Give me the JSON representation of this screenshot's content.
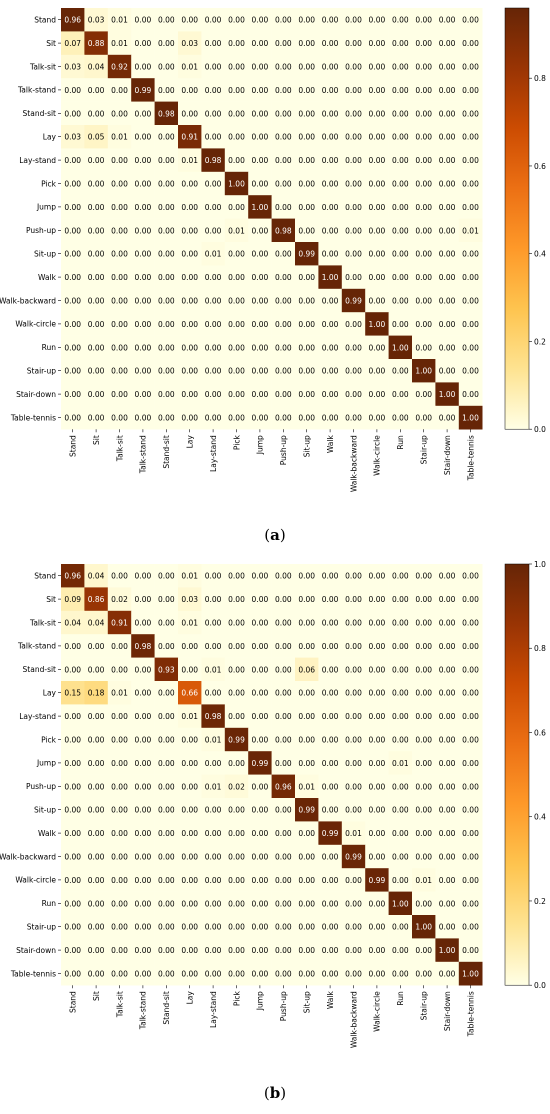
{
  "chart_data": [
    {
      "type": "heatmap",
      "panel_label": "a",
      "rows": [
        "Stand",
        "Sit",
        "Talk-sit",
        "Talk-stand",
        "Stand-sit",
        "Lay",
        "Lay-stand",
        "Pick",
        "Jump",
        "Push-up",
        "Sit-up",
        "Walk",
        "Walk-backward",
        "Walk-circle",
        "Run",
        "Stair-up",
        "Stair-down",
        "Table-tennis"
      ],
      "cols": [
        "Stand",
        "Sit",
        "Talk-sit",
        "Talk-stand",
        "Stand-sit",
        "Lay",
        "Lay-stand",
        "Pick",
        "Jump",
        "Push-up",
        "Sit-up",
        "Walk",
        "Walk-backward",
        "Walk-circle",
        "Run",
        "Stair-up",
        "Stair-down",
        "Table-tennis"
      ],
      "values": [
        [
          0.96,
          0.03,
          0.01,
          0.0,
          0.0,
          0.0,
          0.0,
          0.0,
          0.0,
          0.0,
          0.0,
          0.0,
          0.0,
          0.0,
          0.0,
          0.0,
          0.0,
          0.0
        ],
        [
          0.07,
          0.88,
          0.01,
          0.0,
          0.0,
          0.03,
          0.0,
          0.0,
          0.0,
          0.0,
          0.0,
          0.0,
          0.0,
          0.0,
          0.0,
          0.0,
          0.0,
          0.0
        ],
        [
          0.03,
          0.04,
          0.92,
          0.0,
          0.0,
          0.01,
          0.0,
          0.0,
          0.0,
          0.0,
          0.0,
          0.0,
          0.0,
          0.0,
          0.0,
          0.0,
          0.0,
          0.0
        ],
        [
          0.0,
          0.0,
          0.0,
          0.99,
          0.0,
          0.0,
          0.0,
          0.0,
          0.0,
          0.0,
          0.0,
          0.0,
          0.0,
          0.0,
          0.0,
          0.0,
          0.0,
          0.0
        ],
        [
          0.0,
          0.0,
          0.0,
          0.0,
          0.98,
          0.0,
          0.0,
          0.0,
          0.0,
          0.0,
          0.0,
          0.0,
          0.0,
          0.0,
          0.0,
          0.0,
          0.0,
          0.0
        ],
        [
          0.03,
          0.05,
          0.01,
          0.0,
          0.0,
          0.91,
          0.0,
          0.0,
          0.0,
          0.0,
          0.0,
          0.0,
          0.0,
          0.0,
          0.0,
          0.0,
          0.0,
          0.0
        ],
        [
          0.0,
          0.0,
          0.0,
          0.0,
          0.0,
          0.01,
          0.98,
          0.0,
          0.0,
          0.0,
          0.0,
          0.0,
          0.0,
          0.0,
          0.0,
          0.0,
          0.0,
          0.0
        ],
        [
          0.0,
          0.0,
          0.0,
          0.0,
          0.0,
          0.0,
          0.0,
          1.0,
          0.0,
          0.0,
          0.0,
          0.0,
          0.0,
          0.0,
          0.0,
          0.0,
          0.0,
          0.0
        ],
        [
          0.0,
          0.0,
          0.0,
          0.0,
          0.0,
          0.0,
          0.0,
          0.0,
          1.0,
          0.0,
          0.0,
          0.0,
          0.0,
          0.0,
          0.0,
          0.0,
          0.0,
          0.0
        ],
        [
          0.0,
          0.0,
          0.0,
          0.0,
          0.0,
          0.0,
          0.0,
          0.01,
          0.0,
          0.98,
          0.0,
          0.0,
          0.0,
          0.0,
          0.0,
          0.0,
          0.0,
          0.01
        ],
        [
          0.0,
          0.0,
          0.0,
          0.0,
          0.0,
          0.0,
          0.01,
          0.0,
          0.0,
          0.0,
          0.99,
          0.0,
          0.0,
          0.0,
          0.0,
          0.0,
          0.0,
          0.0
        ],
        [
          0.0,
          0.0,
          0.0,
          0.0,
          0.0,
          0.0,
          0.0,
          0.0,
          0.0,
          0.0,
          0.0,
          1.0,
          0.0,
          0.0,
          0.0,
          0.0,
          0.0,
          0.0
        ],
        [
          0.0,
          0.0,
          0.0,
          0.0,
          0.0,
          0.0,
          0.0,
          0.0,
          0.0,
          0.0,
          0.0,
          0.0,
          0.99,
          0.0,
          0.0,
          0.0,
          0.0,
          0.0
        ],
        [
          0.0,
          0.0,
          0.0,
          0.0,
          0.0,
          0.0,
          0.0,
          0.0,
          0.0,
          0.0,
          0.0,
          0.0,
          0.0,
          1.0,
          0.0,
          0.0,
          0.0,
          0.0
        ],
        [
          0.0,
          0.0,
          0.0,
          0.0,
          0.0,
          0.0,
          0.0,
          0.0,
          0.0,
          0.0,
          0.0,
          0.0,
          0.0,
          0.0,
          1.0,
          0.0,
          0.0,
          0.0
        ],
        [
          0.0,
          0.0,
          0.0,
          0.0,
          0.0,
          0.0,
          0.0,
          0.0,
          0.0,
          0.0,
          0.0,
          0.0,
          0.0,
          0.0,
          0.0,
          1.0,
          0.0,
          0.0
        ],
        [
          0.0,
          0.0,
          0.0,
          0.0,
          0.0,
          0.0,
          0.0,
          0.0,
          0.0,
          0.0,
          0.0,
          0.0,
          0.0,
          0.0,
          0.0,
          0.0,
          1.0,
          0.0
        ],
        [
          0.0,
          0.0,
          0.0,
          0.0,
          0.0,
          0.0,
          0.0,
          0.0,
          0.0,
          0.0,
          0.0,
          0.0,
          0.0,
          0.0,
          0.0,
          0.0,
          0.0,
          1.0
        ]
      ],
      "colorbar": {
        "range": [
          0,
          0.96
        ],
        "ticks": [
          0.0,
          0.2,
          0.4,
          0.6,
          0.8
        ],
        "tick_labels": [
          "0.0",
          "0.2",
          "0.4",
          "0.6",
          "0.8"
        ]
      },
      "colormap": [
        "#ffffe5",
        "#fee391",
        "#fec44f",
        "#fe9929",
        "#ec7014",
        "#cc4c02",
        "#993404",
        "#662506"
      ]
    },
    {
      "type": "heatmap",
      "panel_label": "b",
      "rows": [
        "Stand",
        "Sit",
        "Talk-sit",
        "Talk-stand",
        "Stand-sit",
        "Lay",
        "Lay-stand",
        "Pick",
        "Jump",
        "Push-up",
        "Sit-up",
        "Walk",
        "Walk-backward",
        "Walk-circle",
        "Run",
        "Stair-up",
        "Stair-down",
        "Table-tennis"
      ],
      "cols": [
        "Stand",
        "Sit",
        "Talk-sit",
        "Talk-stand",
        "Stand-sit",
        "Lay",
        "Lay-stand",
        "Pick",
        "Jump",
        "Push-up",
        "Sit-up",
        "Walk",
        "Walk-backward",
        "Walk-circle",
        "Run",
        "Stair-up",
        "Stair-down",
        "Table-tennis"
      ],
      "values": [
        [
          0.96,
          0.04,
          0.0,
          0.0,
          0.0,
          0.01,
          0.0,
          0.0,
          0.0,
          0.0,
          0.0,
          0.0,
          0.0,
          0.0,
          0.0,
          0.0,
          0.0,
          0.0
        ],
        [
          0.09,
          0.86,
          0.02,
          0.0,
          0.0,
          0.03,
          0.0,
          0.0,
          0.0,
          0.0,
          0.0,
          0.0,
          0.0,
          0.0,
          0.0,
          0.0,
          0.0,
          0.0
        ],
        [
          0.04,
          0.04,
          0.91,
          0.0,
          0.0,
          0.01,
          0.0,
          0.0,
          0.0,
          0.0,
          0.0,
          0.0,
          0.0,
          0.0,
          0.0,
          0.0,
          0.0,
          0.0
        ],
        [
          0.0,
          0.0,
          0.0,
          0.98,
          0.0,
          0.0,
          0.0,
          0.0,
          0.0,
          0.0,
          0.0,
          0.0,
          0.0,
          0.0,
          0.0,
          0.0,
          0.0,
          0.0
        ],
        [
          0.0,
          0.0,
          0.0,
          0.0,
          0.93,
          0.0,
          0.01,
          0.0,
          0.0,
          0.0,
          0.06,
          0.0,
          0.0,
          0.0,
          0.0,
          0.0,
          0.0,
          0.0
        ],
        [
          0.15,
          0.18,
          0.01,
          0.0,
          0.0,
          0.66,
          0.0,
          0.0,
          0.0,
          0.0,
          0.0,
          0.0,
          0.0,
          0.0,
          0.0,
          0.0,
          0.0,
          0.0
        ],
        [
          0.0,
          0.0,
          0.0,
          0.0,
          0.0,
          0.01,
          0.98,
          0.0,
          0.0,
          0.0,
          0.0,
          0.0,
          0.0,
          0.0,
          0.0,
          0.0,
          0.0,
          0.0
        ],
        [
          0.0,
          0.0,
          0.0,
          0.0,
          0.0,
          0.0,
          0.01,
          0.99,
          0.0,
          0.0,
          0.0,
          0.0,
          0.0,
          0.0,
          0.0,
          0.0,
          0.0,
          0.0
        ],
        [
          0.0,
          0.0,
          0.0,
          0.0,
          0.0,
          0.0,
          0.0,
          0.0,
          0.99,
          0.0,
          0.0,
          0.0,
          0.0,
          0.0,
          0.01,
          0.0,
          0.0,
          0.0
        ],
        [
          0.0,
          0.0,
          0.0,
          0.0,
          0.0,
          0.0,
          0.01,
          0.02,
          0.0,
          0.96,
          0.01,
          0.0,
          0.0,
          0.0,
          0.0,
          0.0,
          0.0,
          0.0
        ],
        [
          0.0,
          0.0,
          0.0,
          0.0,
          0.0,
          0.0,
          0.0,
          0.0,
          0.0,
          0.0,
          0.99,
          0.0,
          0.0,
          0.0,
          0.0,
          0.0,
          0.0,
          0.0
        ],
        [
          0.0,
          0.0,
          0.0,
          0.0,
          0.0,
          0.0,
          0.0,
          0.0,
          0.0,
          0.0,
          0.0,
          0.99,
          0.01,
          0.0,
          0.0,
          0.0,
          0.0,
          0.0
        ],
        [
          0.0,
          0.0,
          0.0,
          0.0,
          0.0,
          0.0,
          0.0,
          0.0,
          0.0,
          0.0,
          0.0,
          0.0,
          0.99,
          0.0,
          0.0,
          0.0,
          0.0,
          0.0
        ],
        [
          0.0,
          0.0,
          0.0,
          0.0,
          0.0,
          0.0,
          0.0,
          0.0,
          0.0,
          0.0,
          0.0,
          0.0,
          0.0,
          0.99,
          0.0,
          0.01,
          0.0,
          0.0
        ],
        [
          0.0,
          0.0,
          0.0,
          0.0,
          0.0,
          0.0,
          0.0,
          0.0,
          0.0,
          0.0,
          0.0,
          0.0,
          0.0,
          0.0,
          1.0,
          0.0,
          0.0,
          0.0
        ],
        [
          0.0,
          0.0,
          0.0,
          0.0,
          0.0,
          0.0,
          0.0,
          0.0,
          0.0,
          0.0,
          0.0,
          0.0,
          0.0,
          0.0,
          0.0,
          1.0,
          0.0,
          0.0
        ],
        [
          0.0,
          0.0,
          0.0,
          0.0,
          0.0,
          0.0,
          0.0,
          0.0,
          0.0,
          0.0,
          0.0,
          0.0,
          0.0,
          0.0,
          0.0,
          0.0,
          1.0,
          0.0
        ],
        [
          0.0,
          0.0,
          0.0,
          0.0,
          0.0,
          0.0,
          0.0,
          0.0,
          0.0,
          0.0,
          0.0,
          0.0,
          0.0,
          0.0,
          0.0,
          0.0,
          0.0,
          1.0
        ]
      ],
      "colorbar": {
        "range": [
          0,
          1.0
        ],
        "ticks": [
          0.0,
          0.2,
          0.4,
          0.6,
          0.8,
          1.0
        ],
        "tick_labels": [
          "0.0",
          "0.2",
          "0.4",
          "0.6",
          "0.8",
          "1.0"
        ]
      },
      "colormap": [
        "#ffffe5",
        "#fee391",
        "#fec44f",
        "#fe9929",
        "#ec7014",
        "#cc4c02",
        "#993404",
        "#662506"
      ]
    }
  ],
  "captions": {
    "a": "a",
    "b": "b"
  }
}
